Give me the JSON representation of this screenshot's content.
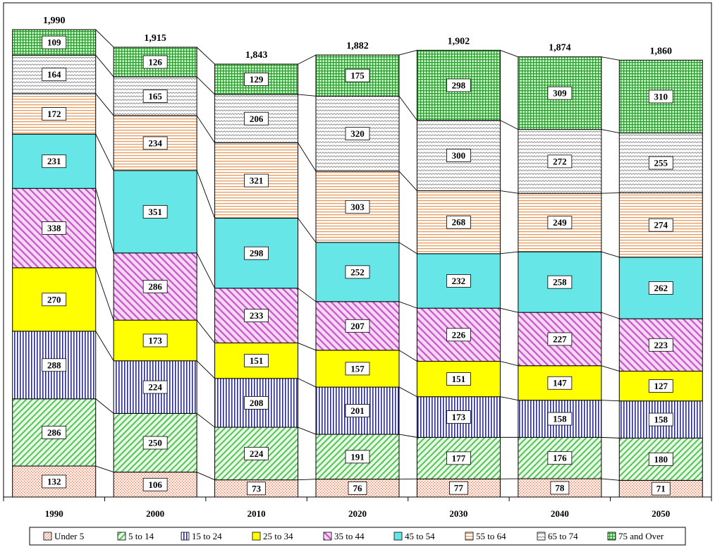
{
  "chart_data": {
    "type": "stacked-bar",
    "title": "",
    "xlabel": "",
    "ylabel": "",
    "ylim": [
      0,
      1990
    ],
    "grid": false,
    "legend_position": "bottom",
    "categories": [
      "1990",
      "2000",
      "2010",
      "2020",
      "2030",
      "2040",
      "2050"
    ],
    "totals": [
      "1,990",
      "1,915",
      "1,843",
      "1,882",
      "1,902",
      "1,874",
      "1,860"
    ],
    "series": [
      {
        "name": "Under 5",
        "color": "#f4c9b4",
        "pattern": "dots",
        "values": [
          132,
          106,
          73,
          76,
          77,
          78,
          71
        ]
      },
      {
        "name": "5 to 14",
        "color": "#b9f0b9",
        "pattern": "diag-right",
        "values": [
          286,
          250,
          224,
          191,
          177,
          176,
          180
        ]
      },
      {
        "name": "15 to 24",
        "color": "#2b2b8a",
        "pattern": "vertical",
        "values": [
          288,
          224,
          208,
          201,
          173,
          158,
          158
        ]
      },
      {
        "name": "25 to 34",
        "color": "#ffff00",
        "pattern": "solid",
        "values": [
          270,
          173,
          151,
          157,
          151,
          147,
          127
        ]
      },
      {
        "name": "35 to 44",
        "color": "#c855c8",
        "pattern": "diag-left",
        "values": [
          338,
          286,
          233,
          207,
          226,
          227,
          223
        ]
      },
      {
        "name": "45 to 54",
        "color": "#66e6e6",
        "pattern": "solid",
        "values": [
          231,
          351,
          298,
          252,
          232,
          258,
          262
        ]
      },
      {
        "name": "55 to 64",
        "color": "#e69a5c",
        "pattern": "horizontal",
        "values": [
          172,
          234,
          321,
          303,
          268,
          249,
          274
        ]
      },
      {
        "name": "65 to 74",
        "color": "#b3b3b3",
        "pattern": "waves",
        "values": [
          164,
          165,
          206,
          320,
          300,
          272,
          255
        ]
      },
      {
        "name": "75 and Over",
        "color": "#3fa33f",
        "pattern": "grid",
        "values": [
          109,
          126,
          129,
          175,
          298,
          309,
          310
        ]
      }
    ]
  }
}
